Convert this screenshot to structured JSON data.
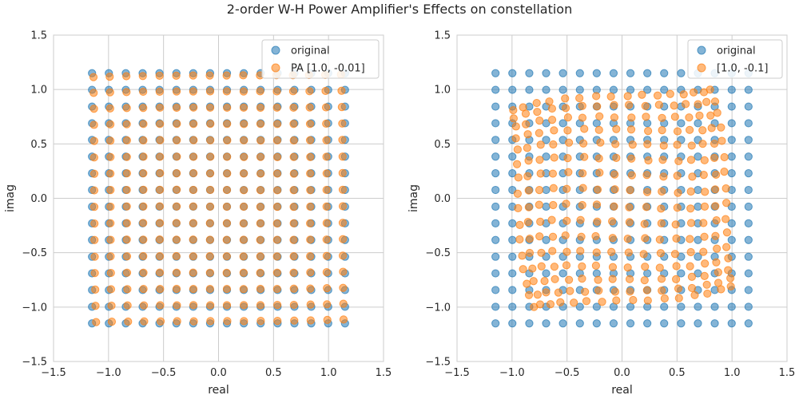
{
  "figure": {
    "title": "2-order W-H Power Amplifier's Effects on constellation"
  },
  "chart_data": [
    {
      "type": "scatter",
      "title": "",
      "xlabel": "real",
      "ylabel": "imag",
      "xlim": [
        -1.5,
        1.5
      ],
      "ylim": [
        -1.5,
        1.5
      ],
      "xticks": [
        -1.5,
        -1.0,
        -0.5,
        0.0,
        0.5,
        1.0,
        1.5
      ],
      "yticks": [
        -1.5,
        -1.0,
        -0.5,
        0.0,
        0.5,
        1.0,
        1.5
      ],
      "xtick_labels": [
        "−1.5",
        "−1.0",
        "−0.5",
        "0.0",
        "0.5",
        "1.0",
        "1.5"
      ],
      "ytick_labels": [
        "−1.5",
        "−1.0",
        "−0.5",
        "0.0",
        "0.5",
        "1.0",
        "1.5"
      ],
      "grid": true,
      "legend_position": "top-right",
      "series": [
        {
          "name": "original",
          "color": "#1f77b4",
          "description": "256-QAM grid, levels ±k·0.0767 for odd k in 1..15",
          "levels": [
            -1.15,
            -0.997,
            -0.843,
            -0.69,
            -0.537,
            -0.383,
            -0.23,
            -0.0767,
            0.0767,
            0.23,
            0.383,
            0.537,
            0.69,
            0.843,
            0.997,
            1.15
          ]
        },
        {
          "name": "PA [1.0, -0.01]",
          "color": "#ff7f0e",
          "description": "Wiener-Hammerstein memory PA output, coefficients [1.0, -0.01]",
          "coeffs": [
            1.0,
            -0.01
          ]
        }
      ]
    },
    {
      "type": "scatter",
      "title": "",
      "xlabel": "real",
      "ylabel": "imag",
      "xlim": [
        -1.5,
        1.5
      ],
      "ylim": [
        -1.5,
        1.5
      ],
      "xticks": [
        -1.5,
        -1.0,
        -0.5,
        0.0,
        0.5,
        1.0,
        1.5
      ],
      "yticks": [
        -1.5,
        -1.0,
        -0.5,
        0.0,
        0.5,
        1.0,
        1.5
      ],
      "xtick_labels": [
        "−1.5",
        "−1.0",
        "−0.5",
        "0.0",
        "0.5",
        "1.0",
        "1.5"
      ],
      "ytick_labels": [
        "−1.5",
        "−1.0",
        "−0.5",
        "0.0",
        "0.5",
        "1.0",
        "1.5"
      ],
      "grid": true,
      "legend_position": "top-right",
      "series": [
        {
          "name": "original",
          "color": "#1f77b4",
          "description": "256-QAM grid, levels ±k·0.0767 for odd k in 1..15",
          "levels": [
            -1.15,
            -0.997,
            -0.843,
            -0.69,
            -0.537,
            -0.383,
            -0.23,
            -0.0767,
            0.0767,
            0.23,
            0.383,
            0.537,
            0.69,
            0.843,
            0.997,
            1.15
          ]
        },
        {
          "name": "[1.0, -0.1]",
          "color": "#ff7f0e",
          "description": "Wiener-Hammerstein memory PA output, coefficients [1.0, -0.1]",
          "coeffs": [
            1.0,
            -0.1
          ]
        }
      ]
    }
  ]
}
